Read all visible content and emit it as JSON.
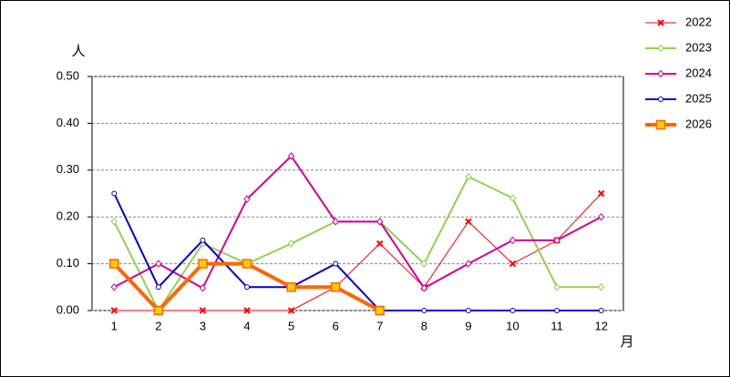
{
  "chart_data": {
    "type": "line",
    "y_label": "人",
    "x_label": "月",
    "categories": [
      "1",
      "2",
      "3",
      "4",
      "5",
      "6",
      "7",
      "8",
      "9",
      "10",
      "11",
      "12"
    ],
    "series": [
      {
        "name": "2022",
        "color": "#ff0000",
        "marker": "cross",
        "width": 1,
        "values": [
          0,
          0,
          0,
          0,
          0,
          0.05,
          0.143,
          0.05,
          0.19,
          0.1,
          0.15,
          0.25
        ]
      },
      {
        "name": "2023",
        "color": "#92d050",
        "marker": "diamond",
        "width": 2,
        "values": [
          0.19,
          0,
          0.143,
          0.1,
          0.143,
          0.19,
          0.19,
          0.1,
          0.286,
          0.24,
          0.05,
          0.05
        ]
      },
      {
        "name": "2024",
        "color": "#cc0099",
        "marker": "diamond",
        "width": 2,
        "values": [
          0.05,
          0.1,
          0.048,
          0.238,
          0.33,
          0.19,
          0.19,
          0.048,
          0.1,
          0.15,
          0.15,
          0.2
        ]
      },
      {
        "name": "2025",
        "color": "#0000cc",
        "marker": "circle",
        "width": 2,
        "values": [
          0.25,
          0.05,
          0.15,
          0.05,
          0.05,
          0.1,
          0,
          0,
          0,
          0,
          0,
          0
        ]
      },
      {
        "name": "2026",
        "color": "#ff6600",
        "marker": "square",
        "width": 4,
        "values": [
          0.1,
          0,
          0.1,
          0.1,
          0.05,
          0.05,
          0,
          null,
          null,
          null,
          null,
          null
        ]
      }
    ],
    "ylim": [
      0,
      0.5
    ],
    "yticks": [
      {
        "value": 0,
        "label": "0.00"
      },
      {
        "value": 0.1,
        "label": "0.10"
      },
      {
        "value": 0.2,
        "label": "0.20"
      },
      {
        "value": 0.3,
        "label": "0.30"
      },
      {
        "value": 0.4,
        "label": "0.40"
      },
      {
        "value": 0.5,
        "label": "0.50"
      }
    ],
    "grid": true,
    "legend": "top-right"
  }
}
